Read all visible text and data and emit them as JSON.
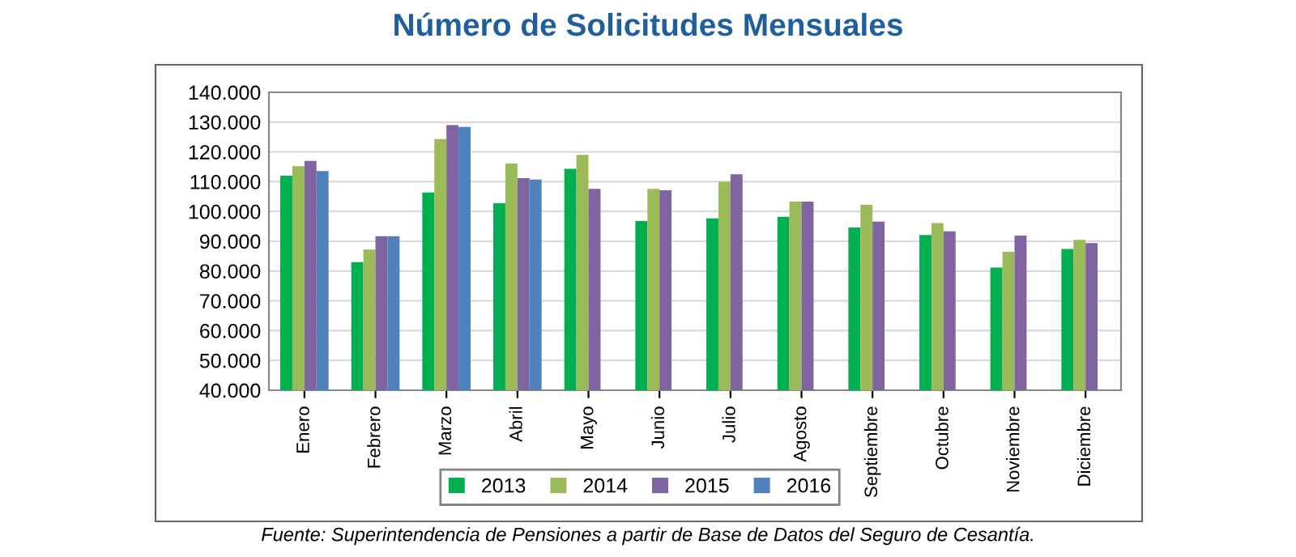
{
  "chart_data": {
    "type": "bar",
    "title": "Número de Solicitudes Mensuales",
    "categories": [
      "Enero",
      "Febrero",
      "Marzo",
      "Abril",
      "Mayo",
      "Junio",
      "Julio",
      "Agosto",
      "Septiembre",
      "Octubre",
      "Noviembre",
      "Diciembre"
    ],
    "series": [
      {
        "name": "2013",
        "color": "#00b050",
        "values": [
          112000,
          83000,
          106400,
          102800,
          114300,
          96800,
          97700,
          98200,
          94600,
          92100,
          81200,
          87400
        ]
      },
      {
        "name": "2014",
        "color": "#9bbb59",
        "values": [
          115200,
          87200,
          124300,
          116100,
          119000,
          107600,
          110000,
          103300,
          102200,
          96100,
          86500,
          90500
        ]
      },
      {
        "name": "2015",
        "color": "#8064a2",
        "values": [
          117000,
          91700,
          129000,
          111200,
          107600,
          107100,
          112500,
          103300,
          96600,
          93300,
          91900,
          89400
        ]
      },
      {
        "name": "2016",
        "color": "#4f81bd",
        "values": [
          113600,
          91700,
          128400,
          110700,
          null,
          null,
          null,
          null,
          null,
          null,
          null,
          null
        ]
      }
    ],
    "ylim": [
      40000,
      140000
    ],
    "yticks": [
      {
        "value": 40000,
        "label": "40.000"
      },
      {
        "value": 50000,
        "label": "50.000"
      },
      {
        "value": 60000,
        "label": "60.000"
      },
      {
        "value": 70000,
        "label": "70.000"
      },
      {
        "value": 80000,
        "label": "80.000"
      },
      {
        "value": 90000,
        "label": "90.000"
      },
      {
        "value": 100000,
        "label": "100.000"
      },
      {
        "value": 110000,
        "label": "110.000"
      },
      {
        "value": 120000,
        "label": "120.000"
      },
      {
        "value": 130000,
        "label": "130.000"
      },
      {
        "value": 140000,
        "label": "140.000"
      }
    ],
    "grid": "y",
    "legend": "bottom",
    "annotations": [
      "Fuente: Superintendencia de Pensiones a partir de Base de Datos del Seguro de Cesantía."
    ]
  }
}
